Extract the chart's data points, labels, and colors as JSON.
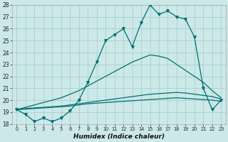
{
  "x": [
    0,
    1,
    2,
    3,
    4,
    5,
    6,
    7,
    8,
    9,
    10,
    11,
    12,
    13,
    14,
    15,
    16,
    17,
    18,
    19,
    20,
    21,
    22,
    23
  ],
  "y_main": [
    19.2,
    18.8,
    18.2,
    18.5,
    18.2,
    18.5,
    19.1,
    20.0,
    21.5,
    23.2,
    25.0,
    25.5,
    26.0,
    24.5,
    26.5,
    28.0,
    27.2,
    27.5,
    27.0,
    26.8,
    25.3,
    21.0,
    19.2,
    20.0
  ],
  "y_line1": [
    19.2,
    19.4,
    19.6,
    19.8,
    20.0,
    20.2,
    20.5,
    20.8,
    21.2,
    21.6,
    22.0,
    22.4,
    22.8,
    23.2,
    23.5,
    23.8,
    23.7,
    23.5,
    23.0,
    22.5,
    22.0,
    21.5,
    20.8,
    20.2
  ],
  "y_line2": [
    19.2,
    19.3,
    19.35,
    19.4,
    19.45,
    19.5,
    19.6,
    19.7,
    19.8,
    19.9,
    20.0,
    20.1,
    20.2,
    20.3,
    20.4,
    20.5,
    20.55,
    20.6,
    20.65,
    20.6,
    20.5,
    20.4,
    20.3,
    20.1
  ],
  "y_line3": [
    19.2,
    19.25,
    19.3,
    19.35,
    19.4,
    19.45,
    19.5,
    19.6,
    19.7,
    19.75,
    19.8,
    19.85,
    19.9,
    19.95,
    20.0,
    20.05,
    20.1,
    20.15,
    20.2,
    20.15,
    20.1,
    20.05,
    20.0,
    19.9
  ],
  "bg_color": "#cce8e8",
  "grid_color": "#aad0d0",
  "line_color": "#007070",
  "ylim": [
    18,
    28
  ],
  "yticks": [
    18,
    19,
    20,
    21,
    22,
    23,
    24,
    25,
    26,
    27,
    28
  ],
  "xticks": [
    0,
    1,
    2,
    3,
    4,
    5,
    6,
    7,
    8,
    9,
    10,
    11,
    12,
    13,
    14,
    15,
    16,
    17,
    18,
    19,
    20,
    21,
    22,
    23
  ],
  "xlabel": "Humidex (Indice chaleur)"
}
